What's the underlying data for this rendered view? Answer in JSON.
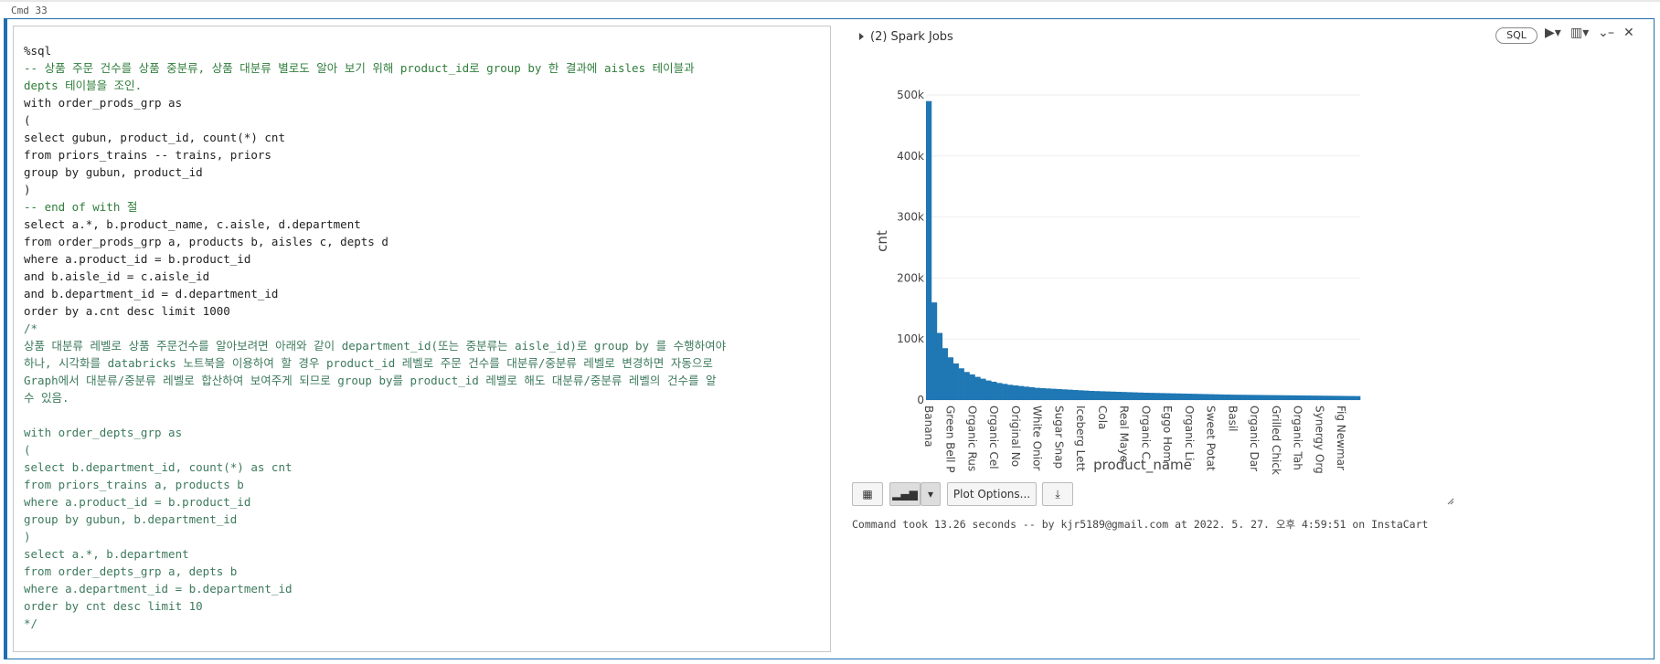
{
  "cmd": "Cmd 33",
  "code": {
    "blocks": [
      [
        "%sql",
        "-- 상품 주문 건수를 상품 중분류, 상품 대분류 별로도 알아 보기 위해 product_id로 group by 한 결과에 aisles 테이블과",
        "depts 테이블을 조인.",
        "with order_prods_grp as",
        "(",
        "select gubun, product_id, count(*) cnt",
        "from priors_trains -- trains, priors",
        "group by gubun, product_id",
        ")",
        "-- end of with 절",
        "select a.*, b.product_name, c.aisle, d.department",
        "from order_prods_grp a, products b, aisles c, depts d",
        "where a.product_id = b.product_id",
        "and b.aisle_id = c.aisle_id",
        "and b.department_id = d.department_id",
        "order by a.cnt desc limit 1000",
        "/*",
        "상품 대분류 레벨로 상품 주문건수를 알아보려면 아래와 같이 department_id(또는 중분류는 aisle_id)로 group by 를 수행하여야",
        "하나, 시각화를 databricks 노트북을 이용하여 할 경우 product_id 레벨로 주문 건수를 대분류/중분류 레벨로 변경하면 자동으로",
        "Graph에서 대분류/중분류 레벨로 합산하여 보여주게 되므로 group by를 product_id 레벨로 해도 대분류/중분류 레벨의 건수를 알",
        "수 있음."
      ],
      [
        "with order_depts_grp as",
        "(",
        "select b.department_id, count(*) as cnt",
        "from priors_trains a, products b",
        "where a.product_id = b.product_id",
        "group by gubun, b.department_id",
        ")",
        "select a.*, b.department",
        "from order_depts_grp a, depts b",
        "where a.department_id = b.department_id",
        "order by cnt desc limit 10",
        "*/"
      ]
    ]
  },
  "spark_jobs": "(2) Spark Jobs",
  "sql_button": "SQL",
  "plot_options": "Plot Options...",
  "status": "Command took 13.26 seconds -- by kjr5189@gmail.com at 2022. 5. 27. 오후 4:59:51 on InstaCart",
  "chart_data": {
    "type": "bar",
    "xlabel": "product_name",
    "ylabel": "cnt",
    "color": "#1f77b4",
    "grid": true,
    "ylim": [
      0,
      500000
    ],
    "yticks": [
      0,
      {
        "value": 100000,
        "label": "100k"
      },
      {
        "value": 200000,
        "label": "200k"
      },
      {
        "value": 300000,
        "label": "300k"
      },
      {
        "value": 400000,
        "label": "400k"
      },
      {
        "value": 500000,
        "label": "500k"
      }
    ],
    "categories": [
      "Banana",
      null,
      null,
      null,
      "Green Bell P",
      null,
      null,
      null,
      "Organic Rus",
      null,
      null,
      null,
      "Organic Cel",
      null,
      null,
      null,
      "Original No",
      null,
      null,
      null,
      "White Onior",
      null,
      null,
      null,
      "Sugar Snap",
      null,
      null,
      null,
      "Iceberg Lett",
      null,
      null,
      null,
      "Cola",
      null,
      null,
      null,
      "Real Maye",
      null,
      null,
      null,
      "Organic C",
      null,
      null,
      null,
      "Eggo Hom",
      null,
      null,
      null,
      "Organic Li",
      null,
      null,
      null,
      "Sweet Potat",
      null,
      null,
      null,
      "Basil",
      null,
      null,
      null,
      "Organic Dar",
      null,
      null,
      null,
      "Grilled Chick",
      null,
      null,
      null,
      "Organic Tah",
      null,
      null,
      null,
      "Synergy Org",
      null,
      null,
      null,
      "Fig Newmar",
      null,
      null,
      null
    ],
    "values": [
      490000,
      160000,
      110000,
      85000,
      70000,
      60000,
      52000,
      46000,
      42000,
      38000,
      35000,
      32000,
      30000,
      28000,
      26500,
      25000,
      24000,
      23000,
      22000,
      21000,
      20000,
      19500,
      19000,
      18500,
      18000,
      17500,
      17000,
      16500,
      16000,
      15500,
      15000,
      14700,
      14400,
      14100,
      13800,
      13500,
      13200,
      12900,
      12600,
      12300,
      12000,
      11800,
      11600,
      11400,
      11200,
      11000,
      10800,
      10600,
      10400,
      10200,
      10000,
      9800,
      9600,
      9400,
      9200,
      9000,
      8800,
      8700,
      8600,
      8500,
      8400,
      8300,
      8200,
      8100,
      8000,
      7900,
      7800,
      7700,
      7600,
      7500,
      7400,
      7300,
      7200,
      7100,
      7000,
      6900,
      6800,
      6700,
      6600,
      6500
    ]
  }
}
